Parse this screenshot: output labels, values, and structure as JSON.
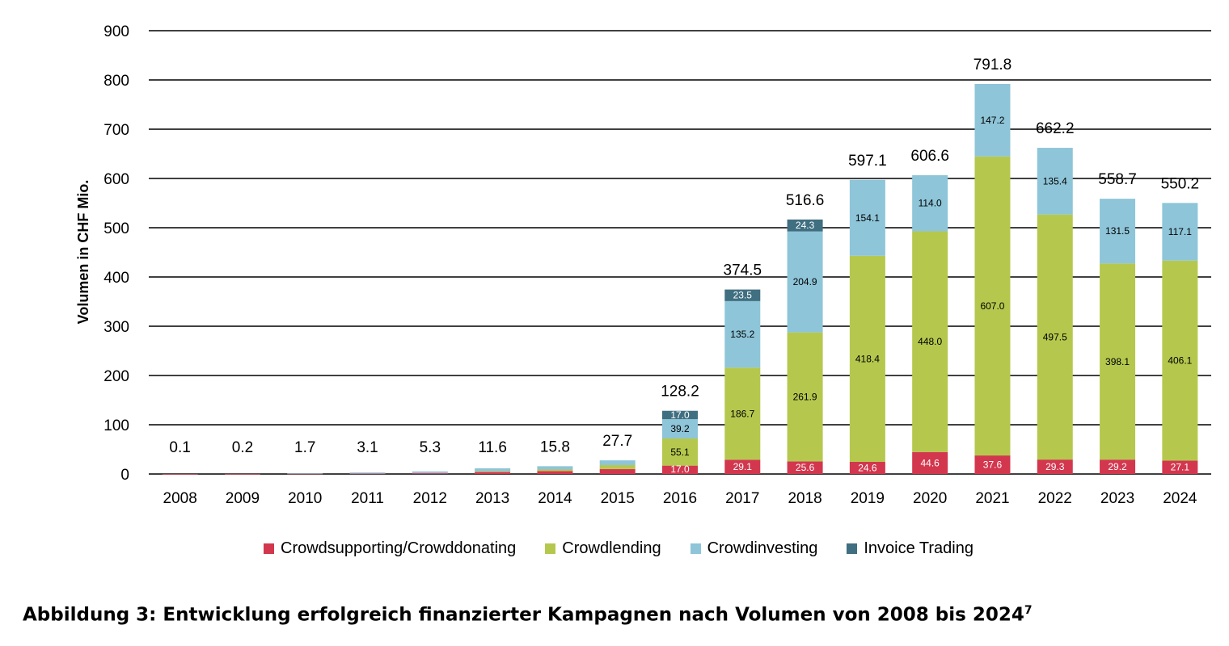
{
  "caption": {
    "text": "Abbildung 3: Entwicklung erfolgreich finanzierter Kampagnen nach Volumen von 2008 bis 2024",
    "footnote": "7"
  },
  "chart_data": {
    "type": "bar",
    "stacked": true,
    "title": "",
    "xlabel": "",
    "ylabel": "Volumen in CHF Mio.",
    "ylim": [
      0,
      900
    ],
    "yticks": [
      0,
      100,
      200,
      300,
      400,
      500,
      600,
      700,
      800,
      900
    ],
    "grid": true,
    "legend_position": "bottom",
    "categories": [
      "2008",
      "2009",
      "2010",
      "2011",
      "2012",
      "2013",
      "2014",
      "2015",
      "2016",
      "2017",
      "2018",
      "2019",
      "2020",
      "2021",
      "2022",
      "2023",
      "2024"
    ],
    "totals": [
      "0.1",
      "0.2",
      "1.7",
      "3.1",
      "5.3",
      "11.6",
      "15.8",
      "27.7",
      "128.2",
      "374.5",
      "516.6",
      "597.1",
      "606.6",
      "791.8",
      "662.2",
      "558.7",
      "550.2"
    ],
    "series": [
      {
        "name": "Crowdsupporting/Crowddonating",
        "color": "#d2374e",
        "values": [
          0.1,
          0.2,
          0.5,
          0.8,
          1.6,
          4.0,
          6.0,
          10.0,
          17.0,
          29.1,
          25.6,
          24.6,
          44.6,
          37.6,
          29.3,
          29.2,
          27.1
        ],
        "labels": [
          "",
          "",
          "",
          "",
          "",
          "",
          "",
          "",
          "17.0",
          "29.1",
          "25.6",
          "24.6",
          "44.6",
          "37.6",
          "29.3",
          "29.2",
          "27.1"
        ]
      },
      {
        "name": "Crowdlending",
        "color": "#b5c84d",
        "values": [
          0,
          0,
          0,
          0,
          0,
          1.5,
          3.0,
          8.0,
          55.1,
          186.7,
          261.9,
          418.4,
          448.0,
          607.0,
          497.5,
          398.1,
          406.1
        ],
        "labels": [
          "",
          "",
          "",
          "",
          "",
          "",
          "",
          "",
          "55.1",
          "186.7",
          "261.9",
          "418.4",
          "448.0",
          "607.0",
          "497.5",
          "398.1",
          "406.1"
        ]
      },
      {
        "name": "Crowdinvesting",
        "color": "#8ec5d8",
        "values": [
          0,
          0,
          1.2,
          2.3,
          3.7,
          6.1,
          6.8,
          9.7,
          39.2,
          135.2,
          204.9,
          154.1,
          114.0,
          147.2,
          135.4,
          131.5,
          117.1
        ],
        "labels": [
          "",
          "",
          "",
          "",
          "",
          "",
          "",
          "",
          "39.2",
          "135.2",
          "204.9",
          "154.1",
          "114.0",
          "147.2",
          "135.4",
          "131.5",
          "117.1"
        ]
      },
      {
        "name": "Invoice Trading",
        "color": "#3f6f80",
        "values": [
          0,
          0,
          0,
          0,
          0,
          0,
          0,
          0,
          17.0,
          23.5,
          24.3,
          0,
          0,
          0,
          0,
          0,
          0
        ],
        "labels": [
          "",
          "",
          "",
          "",
          "",
          "",
          "",
          "",
          "17.0",
          "23.5",
          "24.3",
          "",
          "",
          "",
          "",
          "",
          ""
        ]
      }
    ]
  }
}
